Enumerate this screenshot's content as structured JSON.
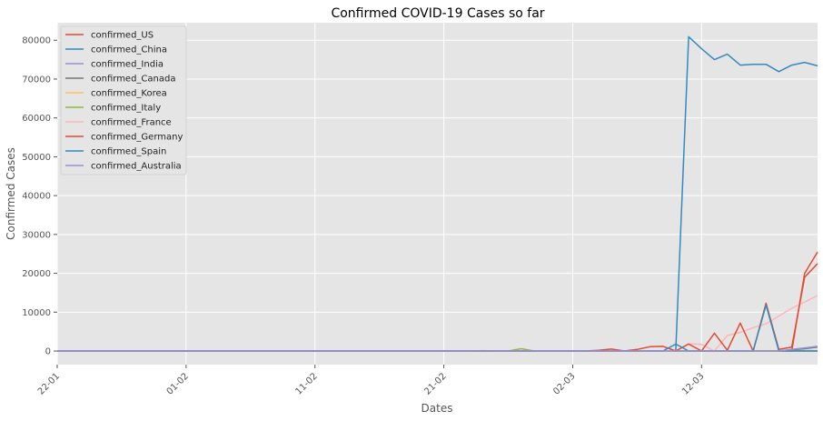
{
  "chart_data": {
    "type": "line",
    "title": "Confirmed COVID-19 Cases so far",
    "xlabel": "Dates",
    "ylabel": "Confirmed Cases",
    "x_ticks": [
      "22-01",
      "01-02",
      "11-02",
      "21-02",
      "02-03",
      "12-03"
    ],
    "x_tick_days": [
      0,
      10,
      20,
      30,
      40,
      50
    ],
    "x_range_days": [
      0,
      59
    ],
    "y_ticks": [
      0,
      10000,
      20000,
      30000,
      40000,
      50000,
      60000,
      70000,
      80000
    ],
    "ylim": [
      -3500,
      84500
    ],
    "grid": true,
    "legend_position": "top-left",
    "x_days": [
      0,
      1,
      2,
      3,
      4,
      5,
      6,
      7,
      8,
      9,
      10,
      11,
      12,
      13,
      14,
      15,
      16,
      17,
      18,
      19,
      20,
      21,
      22,
      23,
      24,
      25,
      26,
      27,
      28,
      29,
      30,
      31,
      32,
      33,
      34,
      35,
      36,
      37,
      38,
      39,
      40,
      41,
      42,
      43,
      44,
      45,
      46,
      47,
      48,
      49,
      50,
      51,
      52,
      53,
      54,
      55,
      56,
      57,
      58,
      59
    ],
    "series": [
      {
        "name": "confirmed_US",
        "color": "#E24A33",
        "values": [
          0,
          0,
          0,
          0,
          0,
          0,
          0,
          0,
          0,
          0,
          0,
          0,
          0,
          0,
          0,
          0,
          0,
          0,
          0,
          0,
          0,
          0,
          0,
          0,
          0,
          0,
          0,
          0,
          0,
          0,
          0,
          0,
          0,
          0,
          0,
          0,
          0,
          0,
          0,
          0,
          0,
          0,
          0,
          0,
          0,
          0,
          0,
          0,
          0,
          0,
          0,
          0,
          0,
          0,
          0,
          0,
          0,
          0,
          20000,
          25500
        ]
      },
      {
        "name": "confirmed_China",
        "color": "#348ABD",
        "values": [
          0,
          0,
          0,
          0,
          0,
          0,
          0,
          0,
          0,
          0,
          0,
          0,
          0,
          0,
          0,
          0,
          0,
          0,
          0,
          0,
          0,
          0,
          0,
          0,
          0,
          0,
          0,
          0,
          0,
          0,
          0,
          0,
          0,
          0,
          0,
          0,
          0,
          0,
          0,
          0,
          0,
          0,
          0,
          0,
          0,
          0,
          0,
          0,
          0,
          80900,
          77800,
          75000,
          76400,
          73600,
          73800,
          73800,
          71900,
          73600,
          74300,
          73400
        ]
      },
      {
        "name": "confirmed_India",
        "color": "#988ED5",
        "values": [
          0,
          0,
          0,
          0,
          0,
          0,
          0,
          0,
          0,
          0,
          0,
          0,
          0,
          0,
          0,
          0,
          0,
          0,
          0,
          0,
          0,
          0,
          0,
          0,
          0,
          0,
          0,
          0,
          0,
          0,
          0,
          0,
          0,
          0,
          0,
          0,
          0,
          0,
          0,
          0,
          0,
          0,
          0,
          0,
          0,
          0,
          0,
          0,
          0,
          0,
          0,
          0,
          0,
          0,
          0,
          0,
          0,
          0,
          100,
          100
        ]
      },
      {
        "name": "confirmed_Canada",
        "color": "#777777",
        "values": [
          0,
          0,
          0,
          0,
          0,
          0,
          0,
          0,
          0,
          0,
          0,
          0,
          0,
          0,
          0,
          0,
          0,
          0,
          0,
          0,
          0,
          0,
          0,
          0,
          0,
          0,
          0,
          0,
          0,
          0,
          0,
          0,
          0,
          0,
          0,
          0,
          0,
          0,
          0,
          0,
          0,
          0,
          0,
          0,
          0,
          0,
          0,
          0,
          0,
          0,
          0,
          0,
          0,
          0,
          0,
          0,
          0,
          300,
          600,
          1000
        ]
      },
      {
        "name": "confirmed_Korea",
        "color": "#FBC15E",
        "values": [
          0,
          0,
          0,
          0,
          0,
          0,
          0,
          0,
          0,
          0,
          0,
          0,
          0,
          0,
          0,
          0,
          0,
          0,
          0,
          0,
          0,
          0,
          0,
          0,
          0,
          0,
          0,
          0,
          0,
          0,
          0,
          0,
          0,
          0,
          0,
          0,
          0,
          0,
          0,
          0,
          0,
          0,
          0,
          0,
          0,
          0,
          0,
          0,
          0,
          0,
          0,
          0,
          0,
          0,
          0,
          0,
          0,
          0,
          0,
          0
        ]
      },
      {
        "name": "confirmed_Italy",
        "color": "#8EBA42",
        "values": [
          0,
          0,
          0,
          0,
          0,
          0,
          0,
          0,
          0,
          0,
          0,
          0,
          0,
          0,
          0,
          0,
          0,
          0,
          0,
          0,
          0,
          0,
          0,
          0,
          0,
          0,
          0,
          0,
          0,
          0,
          0,
          0,
          0,
          100,
          0,
          0,
          600,
          0,
          0,
          0,
          0,
          0,
          0,
          0,
          0,
          0,
          0,
          0,
          0,
          0,
          0,
          0,
          0,
          0,
          0,
          0,
          0,
          0,
          0,
          0
        ]
      },
      {
        "name": "confirmed_France",
        "color": "#FFB5B8",
        "values": [
          0,
          0,
          0,
          0,
          0,
          0,
          0,
          0,
          0,
          0,
          0,
          0,
          0,
          0,
          0,
          0,
          0,
          0,
          0,
          0,
          0,
          0,
          0,
          0,
          0,
          0,
          0,
          0,
          0,
          0,
          0,
          0,
          0,
          0,
          0,
          0,
          0,
          0,
          0,
          0,
          0,
          0,
          0,
          0,
          0,
          0,
          0,
          0,
          0,
          1900,
          1700,
          0,
          4000,
          4800,
          6000,
          7000,
          9000,
          11000,
          12600,
          14300
        ]
      },
      {
        "name": "confirmed_Germany",
        "color": "#E24A33",
        "values": [
          0,
          0,
          0,
          0,
          0,
          0,
          0,
          0,
          0,
          0,
          0,
          0,
          0,
          0,
          0,
          0,
          0,
          0,
          0,
          0,
          0,
          0,
          0,
          0,
          0,
          0,
          0,
          0,
          0,
          0,
          0,
          0,
          0,
          0,
          0,
          0,
          0,
          0,
          0,
          0,
          0,
          0,
          200,
          500,
          0,
          400,
          1100,
          1200,
          0,
          1800,
          0,
          4600,
          200,
          7200,
          0,
          12300,
          400,
          1000,
          19000,
          22500
        ]
      },
      {
        "name": "confirmed_Spain",
        "color": "#348ABD",
        "values": [
          0,
          0,
          0,
          0,
          0,
          0,
          0,
          0,
          0,
          0,
          0,
          0,
          0,
          0,
          0,
          0,
          0,
          0,
          0,
          0,
          0,
          0,
          0,
          0,
          0,
          0,
          0,
          0,
          0,
          0,
          0,
          0,
          0,
          0,
          0,
          0,
          0,
          0,
          0,
          0,
          0,
          0,
          0,
          0,
          0,
          0,
          0,
          0,
          1800,
          0,
          0,
          0,
          0,
          0,
          0,
          11800,
          0,
          0,
          0,
          0
        ]
      },
      {
        "name": "confirmed_Australia",
        "color": "#988ED5",
        "values": [
          0,
          0,
          0,
          0,
          0,
          0,
          0,
          0,
          0,
          0,
          0,
          0,
          0,
          0,
          0,
          0,
          0,
          0,
          0,
          0,
          0,
          0,
          0,
          0,
          0,
          0,
          0,
          0,
          0,
          0,
          0,
          0,
          0,
          0,
          0,
          0,
          0,
          0,
          0,
          0,
          0,
          0,
          0,
          0,
          0,
          0,
          0,
          0,
          0,
          0,
          0,
          0,
          0,
          0,
          0,
          0,
          0,
          400,
          800,
          1200
        ]
      }
    ]
  }
}
